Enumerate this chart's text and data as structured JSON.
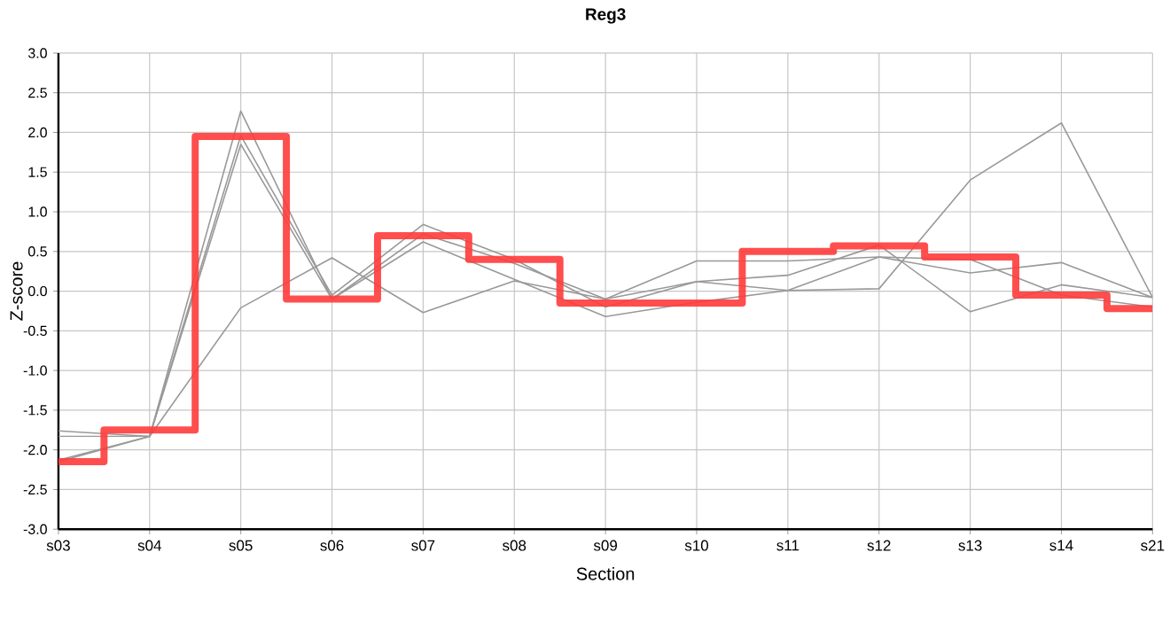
{
  "chart_data": {
    "type": "line",
    "title": "Reg3",
    "xlabel": "Section",
    "ylabel": "Z-score",
    "categories": [
      "s03",
      "s04",
      "s05",
      "s06",
      "s07",
      "s08",
      "s09",
      "s10",
      "s11",
      "s12",
      "s13",
      "s14",
      "s21"
    ],
    "series": [
      {
        "color": "#999999",
        "values": [
          -1.76,
          -1.83,
          2.27,
          -0.1,
          0.72,
          0.35,
          -0.1,
          0.38,
          0.38,
          0.43,
          0.23,
          0.36,
          -0.08
        ]
      },
      {
        "color": "#999999",
        "values": [
          -1.83,
          -1.83,
          1.96,
          -0.05,
          0.84,
          0.4,
          -0.2,
          0.12,
          0.2,
          0.58,
          -0.26,
          0.08,
          -0.08
        ]
      },
      {
        "color": "#999999",
        "values": [
          -2.13,
          -1.83,
          1.85,
          -0.1,
          0.62,
          0.15,
          -0.32,
          -0.14,
          0.01,
          0.43,
          0.4,
          -0.05,
          -0.2
        ]
      },
      {
        "color": "#999999",
        "values": [
          -2.15,
          -1.83,
          -0.21,
          0.42,
          -0.27,
          0.13,
          -0.1,
          0.12,
          0.01,
          0.03,
          1.4,
          2.12,
          -0.08
        ]
      },
      {
        "type": "step",
        "color": "#ff3b3b",
        "values": [
          -2.15,
          -1.75,
          1.95,
          -0.1,
          0.7,
          0.4,
          -0.15,
          -0.15,
          0.5,
          0.57,
          0.43,
          -0.05,
          -0.22
        ]
      }
    ],
    "ylim": [
      -3,
      3
    ],
    "yticks": [
      {
        "value": -3,
        "label": "-3.0"
      },
      {
        "value": -2.5,
        "label": "-2.5"
      },
      {
        "value": -2,
        "label": "-2.0"
      },
      {
        "value": -1.5,
        "label": "-1.5"
      },
      {
        "value": -1,
        "label": "-1.0"
      },
      {
        "value": -0.5,
        "label": "-0.5"
      },
      {
        "value": 0,
        "label": "0.0"
      },
      {
        "value": 0.5,
        "label": "0.5"
      },
      {
        "value": 1,
        "label": "1.0"
      },
      {
        "value": 1.5,
        "label": "1.5"
      },
      {
        "value": 2,
        "label": "2.0"
      },
      {
        "value": 2.5,
        "label": "2.5"
      },
      {
        "value": 3,
        "label": "3.0"
      }
    ],
    "grid": true,
    "marker": "none"
  }
}
